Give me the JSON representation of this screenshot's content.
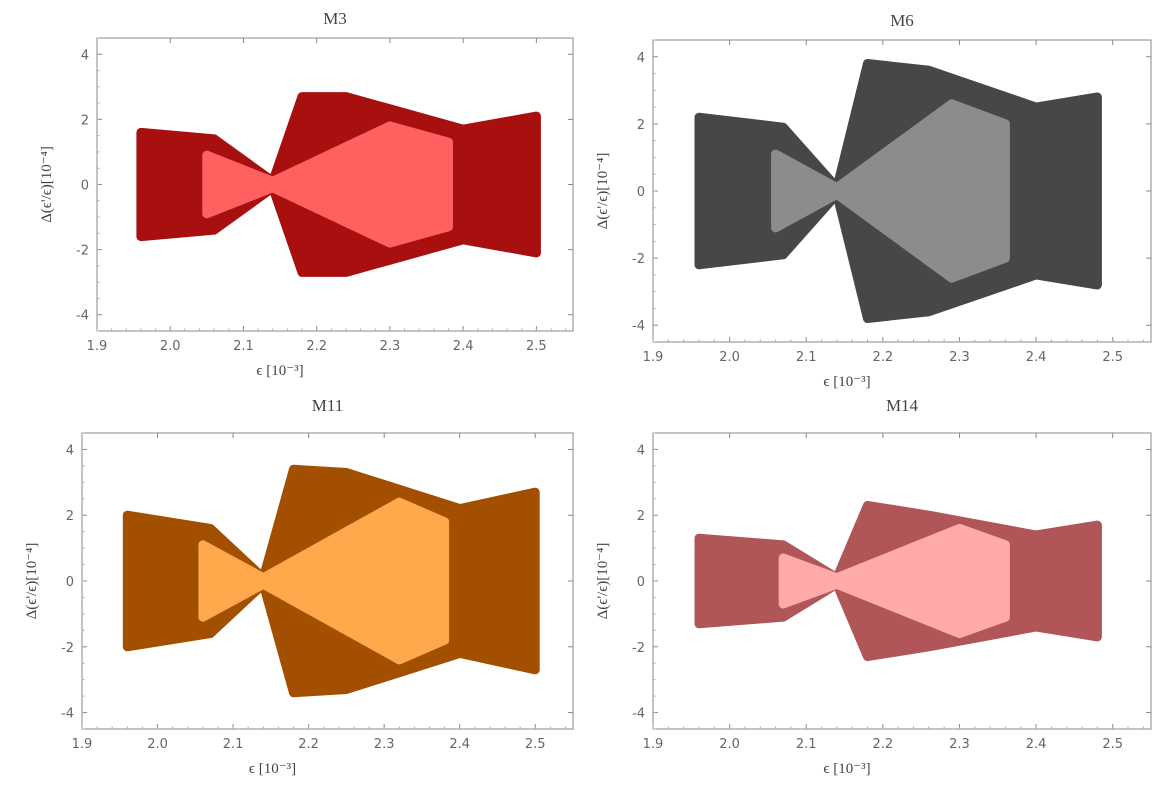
{
  "chart_data": [
    {
      "type": "scatter",
      "title": "M3",
      "xlabel": "ϵ [10⁻³]",
      "ylabel": "Δ(ϵ'/ϵ)[10⁻⁴]",
      "xlim": [
        1.9,
        2.55
      ],
      "ylim": [
        -4.5,
        4.5
      ],
      "xticks": [
        1.9,
        2.0,
        2.1,
        2.2,
        2.3,
        2.4,
        2.5
      ],
      "xtick_labels": [
        "1.9",
        "2.0",
        "2.1",
        "2.2",
        "2.3",
        "2.4",
        "2.5"
      ],
      "yticks": [
        -4,
        -2,
        0,
        2,
        4
      ],
      "ytick_labels": [
        "-4",
        "-2",
        "0",
        "2",
        "4"
      ],
      "grid": false,
      "series": [
        {
          "color": "#a81010",
          "points": [
            [
              1.96,
              1.6
            ],
            [
              2.06,
              1.4
            ],
            [
              2.14,
              0.1
            ],
            [
              2.18,
              2.7
            ],
            [
              2.24,
              2.7
            ],
            [
              2.4,
              1.7
            ],
            [
              2.5,
              2.1
            ],
            [
              2.5,
              -2.1
            ],
            [
              2.4,
              -1.7
            ],
            [
              2.24,
              -2.7
            ],
            [
              2.18,
              -2.7
            ],
            [
              2.14,
              -0.1
            ],
            [
              2.06,
              -1.4
            ],
            [
              1.96,
              -1.6
            ]
          ]
        },
        {
          "color": "#ff6060",
          "points": [
            [
              2.05,
              0.9
            ],
            [
              2.14,
              0.1
            ],
            [
              2.3,
              1.8
            ],
            [
              2.38,
              1.3
            ],
            [
              2.38,
              -1.3
            ],
            [
              2.3,
              -1.8
            ],
            [
              2.14,
              -0.1
            ],
            [
              2.05,
              -0.9
            ]
          ]
        }
      ]
    },
    {
      "type": "scatter",
      "title": "M6",
      "xlabel": "ϵ [10⁻³]",
      "ylabel": "Δ(ϵ'/ϵ)[10⁻⁴]",
      "xlim": [
        1.9,
        2.55
      ],
      "ylim": [
        -4.5,
        4.5
      ],
      "xticks": [
        1.9,
        2.0,
        2.1,
        2.2,
        2.3,
        2.4,
        2.5
      ],
      "xtick_labels": [
        "1.9",
        "2.0",
        "2.1",
        "2.2",
        "2.3",
        "2.4",
        "2.5"
      ],
      "yticks": [
        -4,
        -2,
        0,
        2,
        4
      ],
      "ytick_labels": [
        "-4",
        "-2",
        "0",
        "2",
        "4"
      ],
      "grid": false,
      "series": [
        {
          "color": "#474747",
          "points": [
            [
              1.96,
              2.2
            ],
            [
              2.07,
              1.9
            ],
            [
              2.14,
              0.1
            ],
            [
              2.18,
              3.8
            ],
            [
              2.26,
              3.6
            ],
            [
              2.4,
              2.5
            ],
            [
              2.48,
              2.8
            ],
            [
              2.48,
              -2.8
            ],
            [
              2.4,
              -2.5
            ],
            [
              2.26,
              -3.6
            ],
            [
              2.18,
              -3.8
            ],
            [
              2.14,
              -0.1
            ],
            [
              2.07,
              -1.9
            ],
            [
              1.96,
              -2.2
            ]
          ]
        },
        {
          "color": "#8c8c8c",
          "points": [
            [
              2.06,
              1.1
            ],
            [
              2.14,
              0.1
            ],
            [
              2.29,
              2.6
            ],
            [
              2.36,
              2.0
            ],
            [
              2.36,
              -2.0
            ],
            [
              2.29,
              -2.6
            ],
            [
              2.14,
              -0.1
            ],
            [
              2.06,
              -1.1
            ]
          ]
        }
      ]
    },
    {
      "type": "scatter",
      "title": "M11",
      "xlabel": "ϵ [10⁻³]",
      "ylabel": "Δ(ϵ'/ϵ)[10⁻⁴]",
      "xlim": [
        1.9,
        2.55
      ],
      "ylim": [
        -4.5,
        4.5
      ],
      "xticks": [
        1.9,
        2.0,
        2.1,
        2.2,
        2.3,
        2.4,
        2.5
      ],
      "xtick_labels": [
        "1.9",
        "2.0",
        "2.1",
        "2.2",
        "2.3",
        "2.4",
        "2.5"
      ],
      "yticks": [
        -4,
        -2,
        0,
        2,
        4
      ],
      "ytick_labels": [
        "-4",
        "-2",
        "0",
        "2",
        "4"
      ],
      "grid": false,
      "series": [
        {
          "color": "#a34f00",
          "points": [
            [
              1.96,
              2.0
            ],
            [
              2.07,
              1.6
            ],
            [
              2.14,
              0.1
            ],
            [
              2.18,
              3.4
            ],
            [
              2.25,
              3.3
            ],
            [
              2.4,
              2.2
            ],
            [
              2.5,
              2.7
            ],
            [
              2.5,
              -2.7
            ],
            [
              2.4,
              -2.2
            ],
            [
              2.25,
              -3.3
            ],
            [
              2.18,
              -3.4
            ],
            [
              2.14,
              -0.1
            ],
            [
              2.07,
              -1.6
            ],
            [
              1.96,
              -2.0
            ]
          ]
        },
        {
          "color": "#ffa84c",
          "points": [
            [
              2.06,
              1.1
            ],
            [
              2.14,
              0.1
            ],
            [
              2.32,
              2.4
            ],
            [
              2.38,
              1.8
            ],
            [
              2.38,
              -1.8
            ],
            [
              2.32,
              -2.4
            ],
            [
              2.14,
              -0.1
            ],
            [
              2.06,
              -1.1
            ]
          ]
        }
      ]
    },
    {
      "type": "scatter",
      "title": "M14",
      "xlabel": "ϵ [10⁻³]",
      "ylabel": "Δ(ϵ'/ϵ)[10⁻⁴]",
      "xlim": [
        1.9,
        2.55
      ],
      "ylim": [
        -4.5,
        4.5
      ],
      "xticks": [
        1.9,
        2.0,
        2.1,
        2.2,
        2.3,
        2.4,
        2.5
      ],
      "xtick_labels": [
        "1.9",
        "2.0",
        "2.1",
        "2.2",
        "2.3",
        "2.4",
        "2.5"
      ],
      "yticks": [
        -4,
        -2,
        0,
        2,
        4
      ],
      "ytick_labels": [
        "-4",
        "-2",
        "0",
        "2",
        "4"
      ],
      "grid": false,
      "series": [
        {
          "color": "#b05558",
          "points": [
            [
              1.96,
              1.3
            ],
            [
              2.07,
              1.1
            ],
            [
              2.14,
              0.1
            ],
            [
              2.18,
              2.3
            ],
            [
              2.26,
              2.0
            ],
            [
              2.4,
              1.4
            ],
            [
              2.48,
              1.7
            ],
            [
              2.48,
              -1.7
            ],
            [
              2.4,
              -1.4
            ],
            [
              2.26,
              -2.0
            ],
            [
              2.18,
              -2.3
            ],
            [
              2.14,
              -0.1
            ],
            [
              2.07,
              -1.1
            ],
            [
              1.96,
              -1.3
            ]
          ]
        },
        {
          "color": "#ffaaab",
          "points": [
            [
              2.07,
              0.7
            ],
            [
              2.14,
              0.1
            ],
            [
              2.3,
              1.6
            ],
            [
              2.36,
              1.1
            ],
            [
              2.36,
              -1.1
            ],
            [
              2.3,
              -1.6
            ],
            [
              2.14,
              -0.1
            ],
            [
              2.07,
              -0.7
            ]
          ]
        }
      ]
    }
  ]
}
